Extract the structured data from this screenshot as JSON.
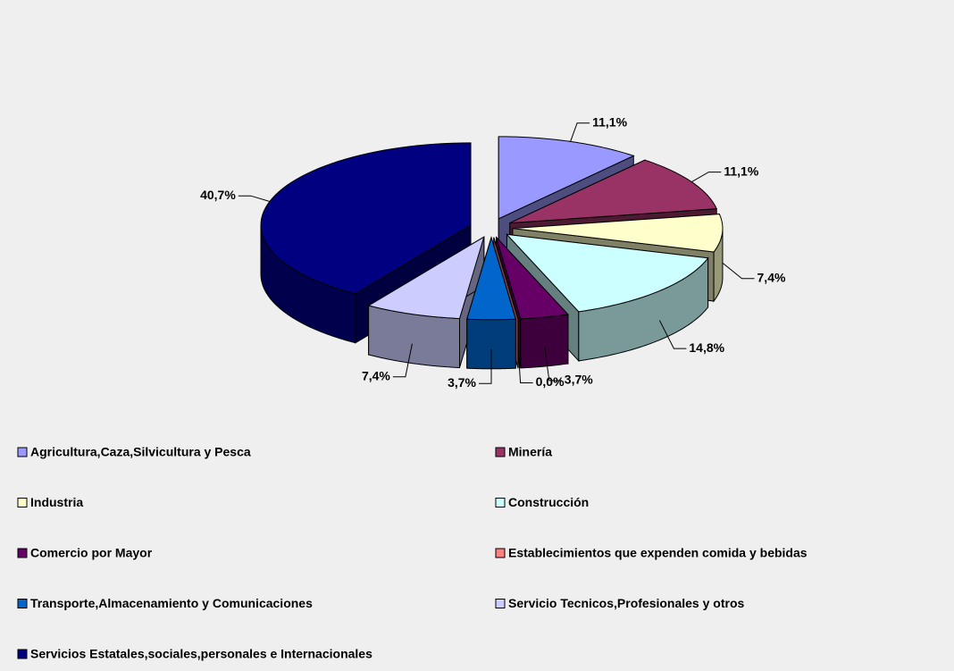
{
  "chart_data": {
    "type": "pie",
    "categories": [
      "Agricultura,Caza,Silvicultura y Pesca",
      "Minería",
      "Industria",
      "Construcción",
      "Comercio por Mayor",
      "Establecimientos que expenden comida y bebidas",
      "Transporte,Almacenamiento y Comunicaciones",
      "Servicio Tecnicos,Profesionales y otros",
      "Servicios Estatales,sociales,personales e Internacionales"
    ],
    "values": [
      11.1,
      11.1,
      7.4,
      14.8,
      3.7,
      0.0,
      3.7,
      7.4,
      40.7
    ],
    "value_labels": [
      "11,1%",
      "11,1%",
      "7,4%",
      "14,8%",
      "3,7%",
      "0,0%",
      "3,7%",
      "7,4%",
      "40,7%"
    ],
    "colors": [
      "#9999ff",
      "#993366",
      "#ffffcc",
      "#ccffff",
      "#660066",
      "#ff8080",
      "#0066cc",
      "#ccccff",
      "#000080"
    ],
    "legend": "bottom"
  }
}
